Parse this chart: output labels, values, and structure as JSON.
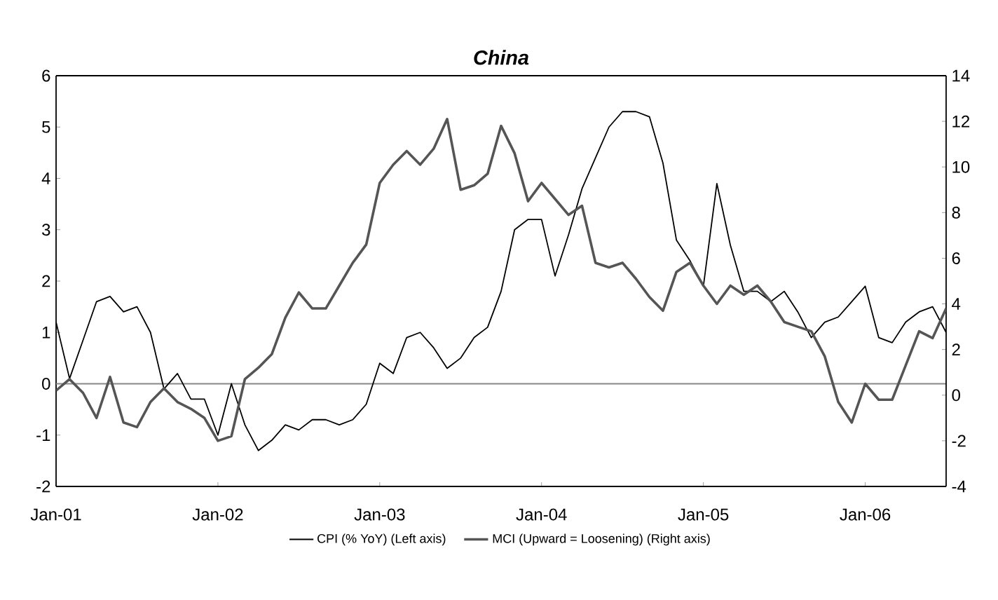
{
  "chart_data": {
    "type": "line",
    "title": "China",
    "x": [
      "2001-01",
      "2001-02",
      "2001-03",
      "2001-04",
      "2001-05",
      "2001-06",
      "2001-07",
      "2001-08",
      "2001-09",
      "2001-10",
      "2001-11",
      "2001-12",
      "2002-01",
      "2002-02",
      "2002-03",
      "2002-04",
      "2002-05",
      "2002-06",
      "2002-07",
      "2002-08",
      "2002-09",
      "2002-10",
      "2002-11",
      "2002-12",
      "2003-01",
      "2003-02",
      "2003-03",
      "2003-04",
      "2003-05",
      "2003-06",
      "2003-07",
      "2003-08",
      "2003-09",
      "2003-10",
      "2003-11",
      "2003-12",
      "2004-01",
      "2004-02",
      "2004-03",
      "2004-04",
      "2004-05",
      "2004-06",
      "2004-07",
      "2004-08",
      "2004-09",
      "2004-10",
      "2004-11",
      "2004-12",
      "2005-01",
      "2005-02",
      "2005-03",
      "2005-04",
      "2005-05",
      "2005-06",
      "2005-07",
      "2005-08",
      "2005-09",
      "2005-10",
      "2005-11",
      "2005-12",
      "2006-01",
      "2006-02",
      "2006-03",
      "2006-04",
      "2006-05",
      "2006-06",
      "2006-07"
    ],
    "series": [
      {
        "name": "CPI (% YoY) (Left axis)",
        "color": "#000000",
        "values": [
          1.2,
          0.1,
          0.85,
          1.6,
          1.7,
          1.4,
          1.5,
          1.0,
          -0.1,
          0.2,
          -0.3,
          -0.3,
          -1.0,
          0.0,
          -0.8,
          -1.3,
          -1.1,
          -0.8,
          -0.9,
          -0.7,
          -0.7,
          -0.8,
          -0.7,
          -0.4,
          0.4,
          0.2,
          0.9,
          1.0,
          0.7,
          0.3,
          0.5,
          0.9,
          1.1,
          1.8,
          3.0,
          3.2,
          3.2,
          2.1,
          2.9,
          3.8,
          4.4,
          5.0,
          5.3,
          5.3,
          5.2,
          4.3,
          2.8,
          2.4,
          1.9,
          3.9,
          2.7,
          1.8,
          1.8,
          1.6,
          1.8,
          1.4,
          0.9,
          1.2,
          1.3,
          1.6,
          1.9,
          0.9,
          0.8,
          1.2,
          1.4,
          1.5,
          1.0
        ]
      },
      {
        "name": "MCI (Upward = Loosening) (Right axis)",
        "color": "#555555",
        "axis": "y2",
        "values": [
          0.2,
          0.7,
          0.1,
          -1.0,
          0.8,
          -1.2,
          -1.4,
          -0.3,
          0.3,
          -0.3,
          -0.6,
          -1.0,
          -2.0,
          -1.8,
          0.7,
          1.2,
          1.8,
          3.4,
          4.5,
          3.8,
          3.8,
          4.8,
          5.8,
          6.6,
          9.3,
          10.1,
          10.7,
          10.1,
          10.8,
          12.1,
          9.0,
          9.2,
          9.7,
          11.8,
          10.6,
          8.5,
          9.3,
          8.6,
          7.9,
          8.3,
          5.8,
          5.6,
          5.8,
          5.1,
          4.3,
          3.7,
          5.4,
          5.8,
          4.8,
          4.0,
          4.8,
          4.4,
          4.8,
          4.1,
          3.2,
          3.0,
          2.8,
          1.7,
          -0.3,
          -1.2,
          0.5,
          -0.2,
          -0.2,
          1.3,
          2.8,
          2.5,
          3.8
        ]
      }
    ],
    "xlim": [
      "2001-01",
      "2006-07"
    ],
    "xticks": [
      {
        "value": "2001-01",
        "label": "Jan-01"
      },
      {
        "value": "2002-01",
        "label": "Jan-02"
      },
      {
        "value": "2003-01",
        "label": "Jan-03"
      },
      {
        "value": "2004-01",
        "label": "Jan-04"
      },
      {
        "value": "2005-01",
        "label": "Jan-05"
      },
      {
        "value": "2006-01",
        "label": "Jan-06"
      }
    ],
    "ylim": [
      -2,
      6
    ],
    "yticks": [
      -2,
      -1,
      0,
      1,
      2,
      3,
      4,
      5,
      6
    ],
    "y2lim": [
      -4,
      14
    ],
    "y2ticks": [
      -4,
      -2,
      0,
      2,
      4,
      6,
      8,
      10,
      12,
      14
    ],
    "ref_lines": [
      {
        "axis": "y",
        "value": 0,
        "color": "#888888"
      }
    ],
    "legend": "bottom"
  }
}
